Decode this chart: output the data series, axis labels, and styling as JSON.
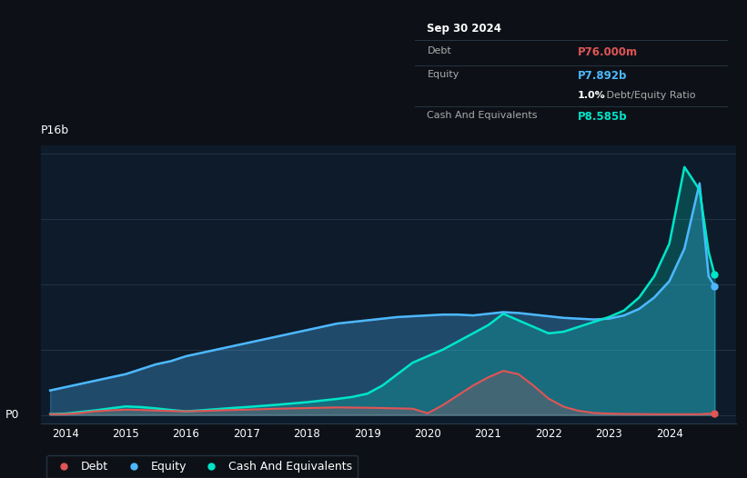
{
  "bg_color": "#0d1117",
  "plot_bg_color": "#0d1b2a",
  "ylabel_text": "P16b",
  "p0_label": "P0",
  "x_min": 2013.6,
  "x_max": 2025.1,
  "y_min": -0.5,
  "y_max": 16.5,
  "xticks": [
    2014,
    2015,
    2016,
    2017,
    2018,
    2019,
    2020,
    2021,
    2022,
    2023,
    2024
  ],
  "debt_color": "#e05555",
  "equity_color": "#4db8ff",
  "cash_color": "#00e5c8",
  "legend_labels": [
    "Debt",
    "Equity",
    "Cash And Equivalents"
  ],
  "tooltip": {
    "date": "Sep 30 2024",
    "debt_label": "Debt",
    "debt_value": "P76.000m",
    "debt_color": "#e05555",
    "equity_label": "Equity",
    "equity_value": "P7.892b",
    "equity_color": "#4db8ff",
    "ratio_text": "1.0%",
    "ratio_label": " Debt/Equity Ratio",
    "cash_label": "Cash And Equivalents",
    "cash_value": "P8.585b",
    "cash_color": "#00e5c8"
  },
  "years": [
    2013.75,
    2014.0,
    2014.25,
    2014.5,
    2014.75,
    2015.0,
    2015.25,
    2015.5,
    2015.75,
    2016.0,
    2016.25,
    2016.5,
    2016.75,
    2017.0,
    2017.25,
    2017.5,
    2017.75,
    2018.0,
    2018.25,
    2018.5,
    2018.75,
    2019.0,
    2019.25,
    2019.5,
    2019.75,
    2020.0,
    2020.25,
    2020.5,
    2020.75,
    2021.0,
    2021.25,
    2021.5,
    2021.75,
    2022.0,
    2022.25,
    2022.5,
    2022.75,
    2023.0,
    2023.25,
    2023.5,
    2023.75,
    2024.0,
    2024.25,
    2024.5,
    2024.65,
    2024.75
  ],
  "equity": [
    1.5,
    1.7,
    1.9,
    2.1,
    2.3,
    2.5,
    2.8,
    3.1,
    3.3,
    3.6,
    3.8,
    4.0,
    4.2,
    4.4,
    4.6,
    4.8,
    5.0,
    5.2,
    5.4,
    5.6,
    5.7,
    5.8,
    5.9,
    6.0,
    6.05,
    6.1,
    6.15,
    6.15,
    6.1,
    6.2,
    6.3,
    6.25,
    6.15,
    6.05,
    5.95,
    5.9,
    5.85,
    5.9,
    6.1,
    6.5,
    7.2,
    8.2,
    10.2,
    14.2,
    8.5,
    7.892
  ],
  "cash": [
    0.05,
    0.08,
    0.18,
    0.28,
    0.4,
    0.52,
    0.48,
    0.4,
    0.3,
    0.22,
    0.28,
    0.35,
    0.42,
    0.48,
    0.55,
    0.62,
    0.7,
    0.78,
    0.88,
    0.98,
    1.1,
    1.3,
    1.8,
    2.5,
    3.2,
    3.6,
    4.0,
    4.5,
    5.0,
    5.5,
    6.2,
    5.8,
    5.4,
    5.0,
    5.1,
    5.4,
    5.7,
    6.0,
    6.4,
    7.2,
    8.5,
    10.5,
    15.2,
    13.8,
    10.0,
    8.585
  ],
  "debt": [
    0.04,
    0.05,
    0.12,
    0.22,
    0.28,
    0.32,
    0.3,
    0.27,
    0.24,
    0.22,
    0.24,
    0.27,
    0.3,
    0.32,
    0.35,
    0.38,
    0.4,
    0.42,
    0.44,
    0.46,
    0.45,
    0.44,
    0.42,
    0.4,
    0.38,
    0.1,
    0.6,
    1.2,
    1.8,
    2.3,
    2.7,
    2.5,
    1.8,
    1.0,
    0.5,
    0.25,
    0.12,
    0.08,
    0.06,
    0.05,
    0.04,
    0.04,
    0.04,
    0.04,
    0.076,
    0.076
  ],
  "gridlines_y": [
    0,
    4.0,
    8.0,
    12.0,
    16.0
  ]
}
